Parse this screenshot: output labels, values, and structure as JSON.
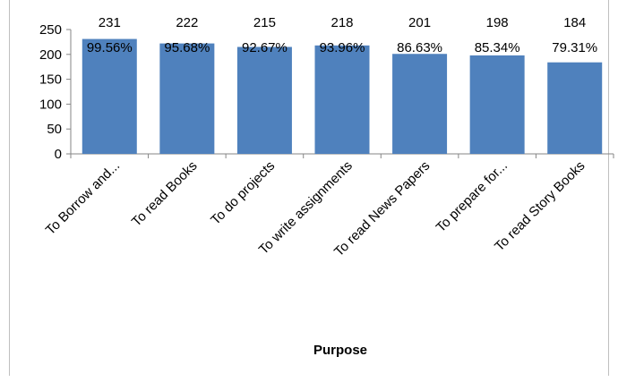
{
  "chart_data": {
    "type": "bar",
    "xlabel": "Purpose",
    "ylabel": "",
    "ylim": [
      0,
      250
    ],
    "yticks": [
      0,
      50,
      100,
      150,
      200,
      250
    ],
    "grid": false,
    "bar_color": "#4f81bd",
    "categories": [
      "To Borrow and...",
      "To read Books",
      "To do projects",
      "To write assignments",
      "To read News Papers",
      "To prepare for...",
      "To read Story Books"
    ],
    "values": [
      231,
      222,
      215,
      218,
      201,
      198,
      184
    ],
    "percent_labels": [
      "99.56%",
      "95.68%",
      "92.67%",
      "93.96%",
      "86.63%",
      "85.34%",
      "79.31%"
    ]
  }
}
